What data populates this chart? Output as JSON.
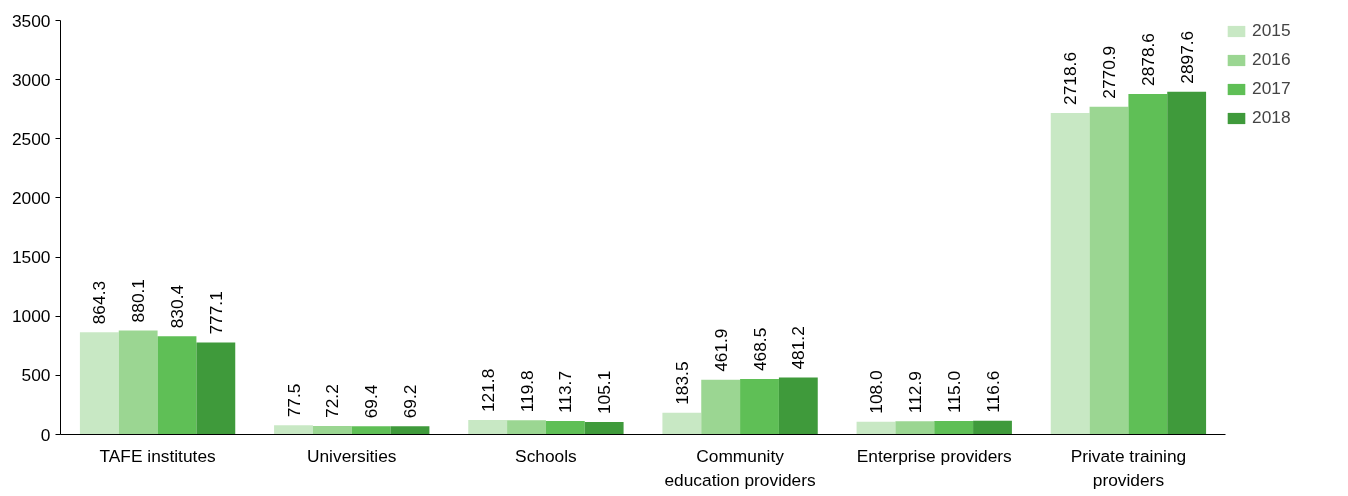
{
  "chart_data": {
    "type": "bar",
    "categories": [
      "TAFE institutes",
      "Universities",
      "Schools",
      "Community education providers",
      "Enterprise providers",
      "Private training providers"
    ],
    "series": [
      {
        "name": "2015",
        "color": "#c8e8c4",
        "values": [
          864.3,
          77.5,
          121.8,
          183.5,
          108.0,
          2718.6
        ]
      },
      {
        "name": "2016",
        "color": "#9bd692",
        "values": [
          880.1,
          72.2,
          119.8,
          461.9,
          112.9,
          2770.9
        ]
      },
      {
        "name": "2017",
        "color": "#5fbf56",
        "values": [
          830.4,
          69.4,
          113.7,
          468.5,
          115.0,
          2878.6
        ]
      },
      {
        "name": "2018",
        "color": "#3f9a3b",
        "values": [
          777.1,
          69.2,
          105.1,
          481.2,
          116.6,
          2897.6
        ]
      }
    ],
    "value_labels": [
      [
        "864.3",
        "77.5",
        "121.8",
        "183.5",
        "108.0",
        "2718.6"
      ],
      [
        "880.1",
        "72.2",
        "119.8",
        "461.9",
        "112.9",
        "2770.9"
      ],
      [
        "830.4",
        "69.4",
        "113.7",
        "468.5",
        "115.0",
        "2878.6"
      ],
      [
        "777.1",
        "69.2",
        "105.1",
        "481.2",
        "116.6",
        "2897.6"
      ]
    ],
    "ylim": [
      0,
      3500
    ],
    "yticks": [
      0,
      500,
      1000,
      1500,
      2000,
      2500,
      3000,
      3500
    ],
    "grid": false,
    "legend": "right"
  }
}
